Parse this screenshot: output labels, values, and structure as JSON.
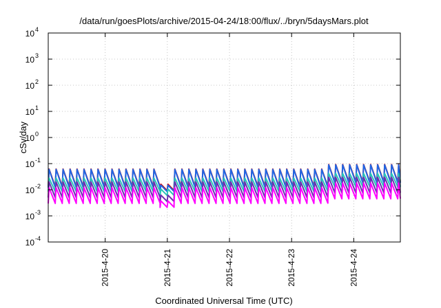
{
  "chart_data": {
    "type": "line",
    "title": "/data/run/goesPlots/archive/2015-04-24/18:00/flux/../bryn/5daysMars.plot",
    "xlabel": "Coordinated Universal Time (UTC)",
    "ylabel": "cSv/day",
    "y_scale": "log",
    "ylim": [
      0.0001,
      10000
    ],
    "y_ticks": [
      {
        "value": 0.0001,
        "label": "10",
        "exp": "-4"
      },
      {
        "value": 0.001,
        "label": "10",
        "exp": "-3"
      },
      {
        "value": 0.01,
        "label": "10",
        "exp": "-2"
      },
      {
        "value": 0.1,
        "label": "10",
        "exp": "-1"
      },
      {
        "value": 1,
        "label": "10",
        "exp": "0"
      },
      {
        "value": 10,
        "label": "10",
        "exp": "1"
      },
      {
        "value": 100,
        "label": "10",
        "exp": "2"
      },
      {
        "value": 1000,
        "label": "10",
        "exp": "3"
      },
      {
        "value": 10000,
        "label": "10",
        "exp": "4"
      }
    ],
    "xlim": [
      "2015-04-19T02:00",
      "2015-04-24T18:00"
    ],
    "x_ticks": [
      {
        "value": "2015-04-20T00:00",
        "label": "2015-4-20"
      },
      {
        "value": "2015-04-21T00:00",
        "label": "2015-4-21"
      },
      {
        "value": "2015-04-22T00:00",
        "label": "2015-4-22"
      },
      {
        "value": "2015-04-23T00:00",
        "label": "2015-4-23"
      },
      {
        "value": "2015-04-24T00:00",
        "label": "2015-4-24"
      }
    ],
    "grid": true,
    "legend": "none",
    "pattern": {
      "period_hours": 2.7,
      "gap": {
        "start": "2015-04-20T19:30",
        "end": "2015-04-21T01:00"
      },
      "increase": {
        "start": "2015-04-23T12:00",
        "factor": 1.5
      }
    },
    "series": [
      {
        "color": "#d40000",
        "peak": 0.062,
        "trough": 0.013
      },
      {
        "color": "#1f66e5",
        "peak": 0.06,
        "trough": 0.012
      },
      {
        "color": "#2ac5b8",
        "peak": 0.028,
        "trough": 0.0085
      },
      {
        "color": "#6a2fb0",
        "peak": 0.02,
        "trough": 0.005
      },
      {
        "color": "#ff00ff",
        "peak": 0.012,
        "trough": 0.003
      }
    ]
  }
}
